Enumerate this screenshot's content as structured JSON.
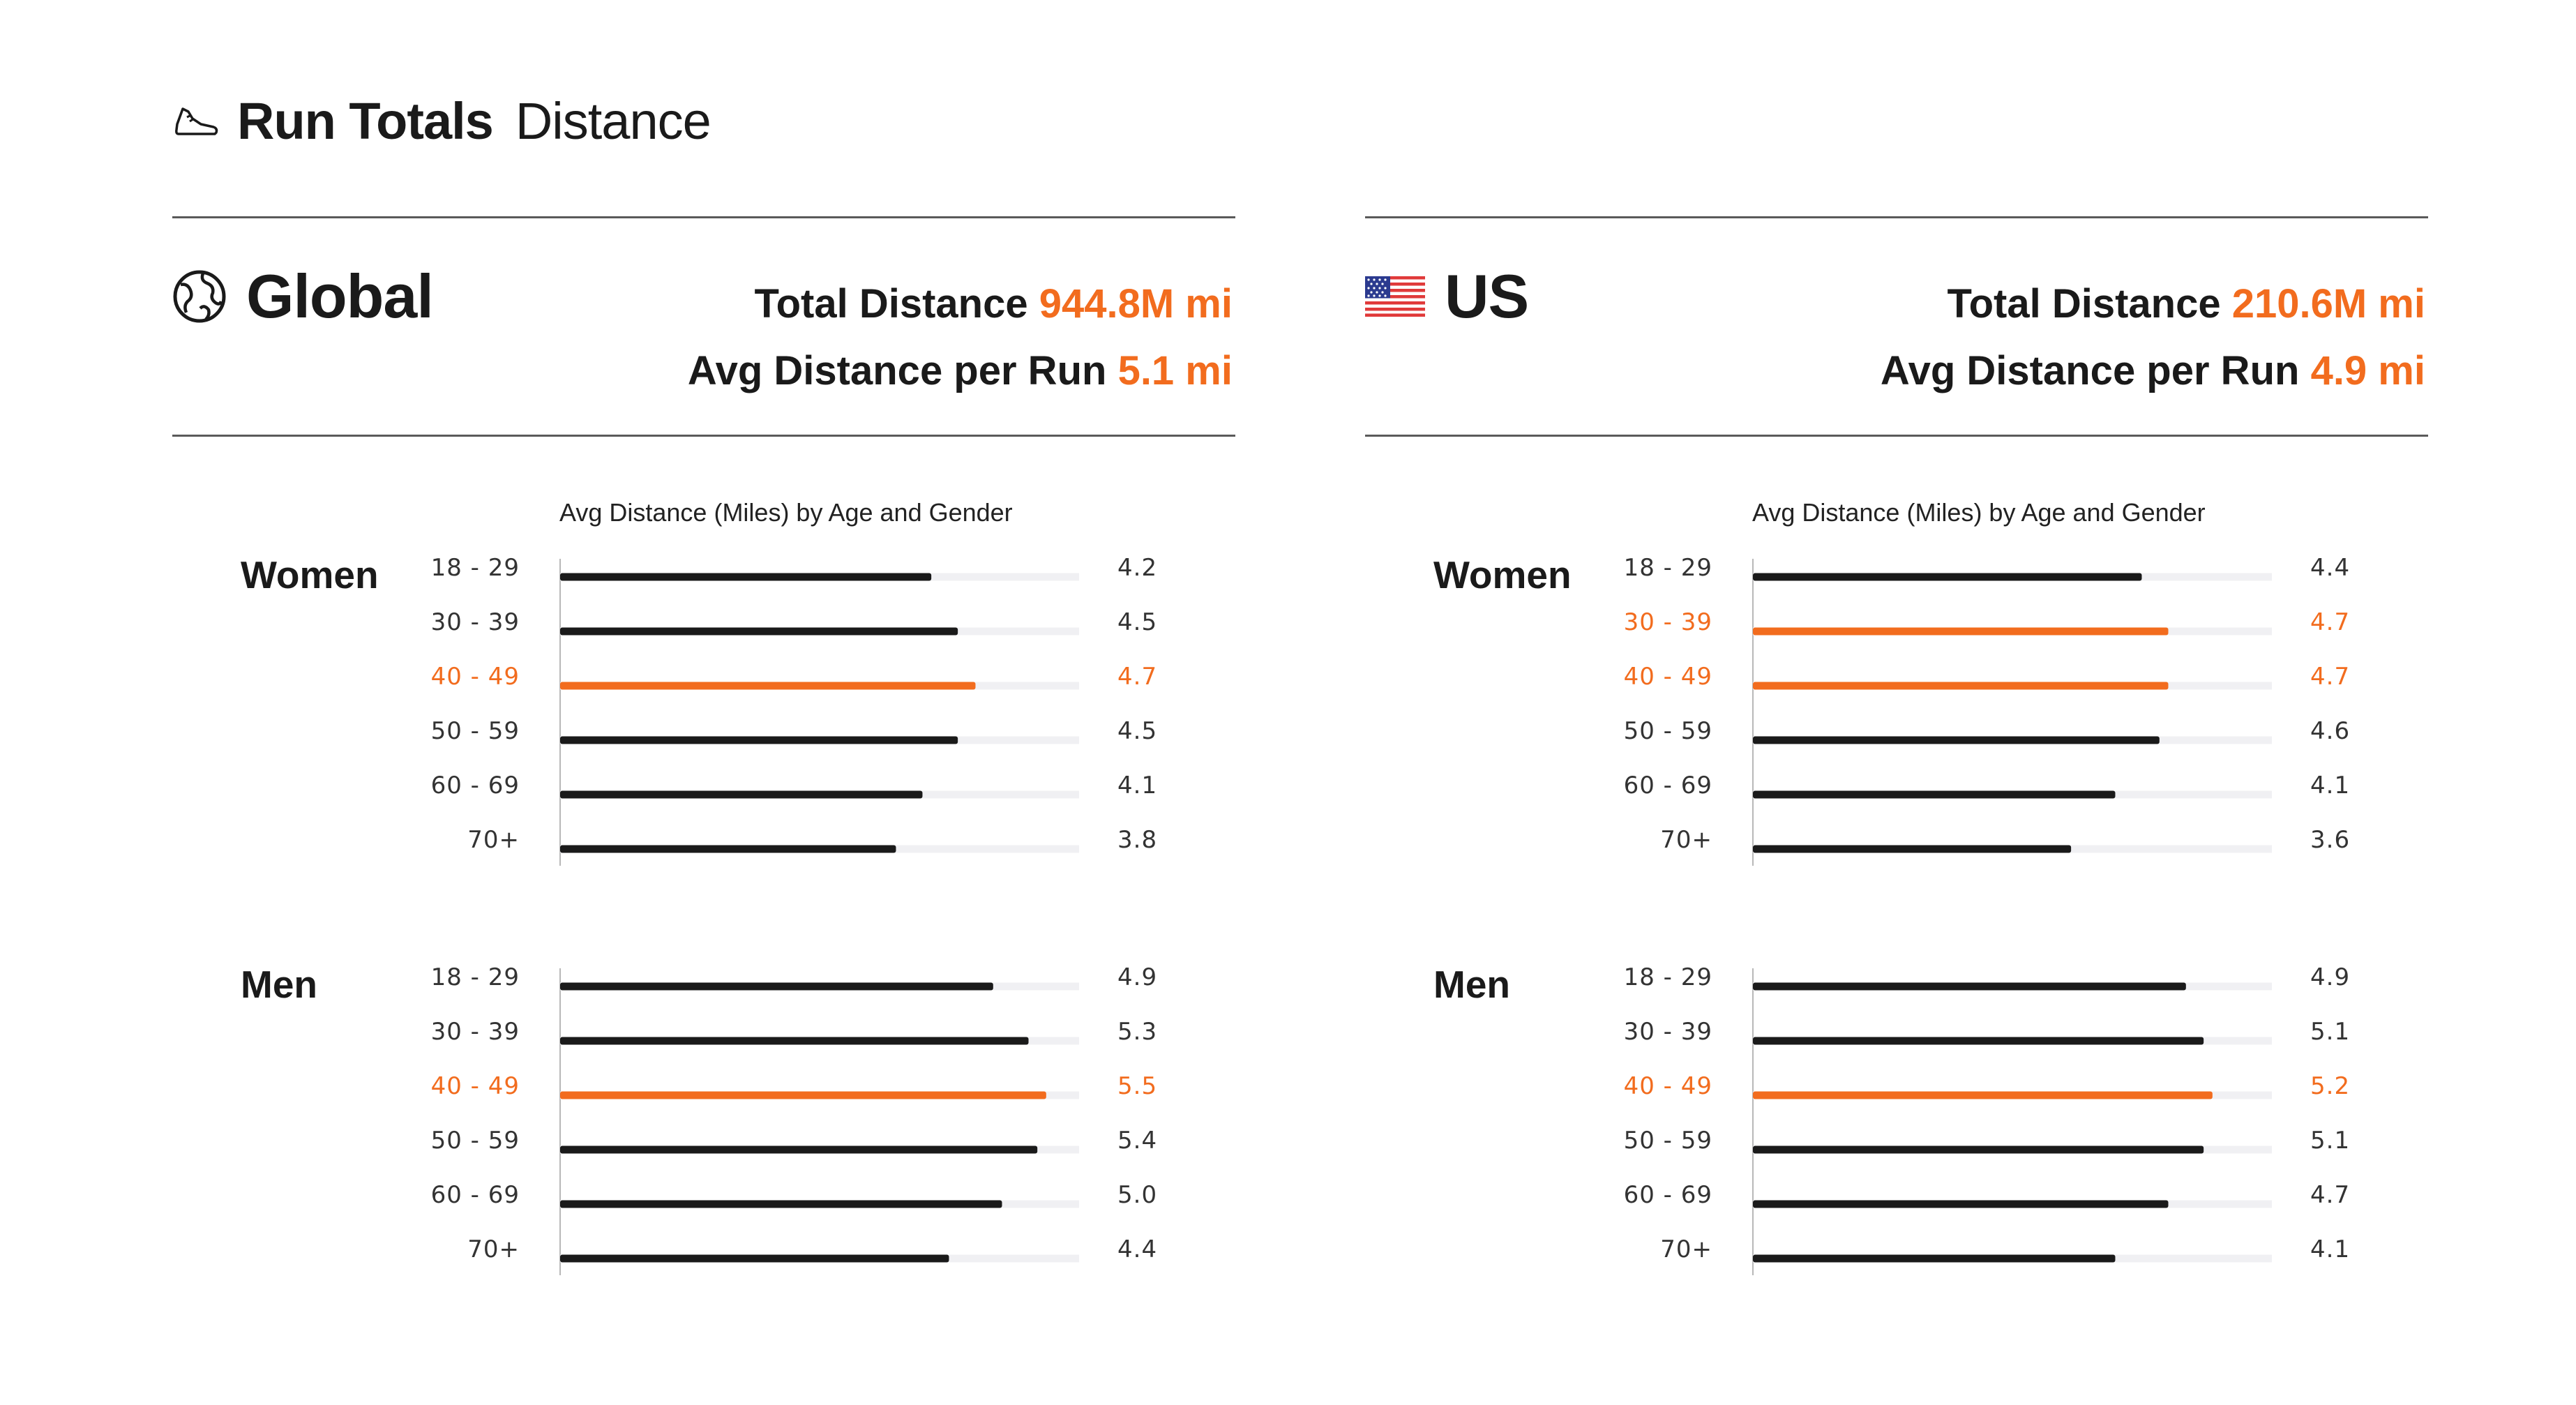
{
  "header": {
    "title_bold": "Run Totals",
    "title_light": "Distance",
    "icon": "shoe-icon"
  },
  "colors": {
    "accent": "#f26c1e",
    "bar": "#1a1a1a",
    "track": "#f0f0f3",
    "axis": "#b8b8b8"
  },
  "panels": {
    "global": {
      "name": "Global",
      "icon": "globe-icon",
      "total_label": "Total Distance",
      "total_value": "944.8M mi",
      "avg_label": "Avg Distance per Run",
      "avg_value": "5.1 mi",
      "chart_title": "Avg Distance (Miles) by Age and Gender"
    },
    "us": {
      "name": "US",
      "icon": "us-flag-icon",
      "total_label": "Total Distance",
      "total_value": "210.6M mi",
      "avg_label": "Avg Distance per Run",
      "avg_value": "4.9 mi",
      "chart_title": "Avg Distance (Miles) by Age and Gender"
    }
  },
  "chart_data": [
    {
      "type": "bar",
      "orientation": "horizontal",
      "title": "Avg Distance (Miles) by Age and Gender",
      "region": "Global",
      "xlim": [
        0,
        6
      ],
      "categories": [
        "18 - 29",
        "30 - 39",
        "40 - 49",
        "50 - 59",
        "60 - 69",
        "70+"
      ],
      "groups": [
        {
          "name": "Women",
          "values": [
            4.2,
            4.5,
            4.7,
            4.5,
            4.1,
            3.8
          ],
          "labels": [
            "4.2",
            "4.5",
            "4.7",
            "4.5",
            "4.1",
            "3.8"
          ],
          "highlight": [
            "40 - 49"
          ]
        },
        {
          "name": "Men",
          "values": [
            4.9,
            5.3,
            5.5,
            5.4,
            5.0,
            4.4
          ],
          "labels": [
            "4.9",
            "5.3",
            "5.5",
            "5.4",
            "5.0",
            "4.4"
          ],
          "highlight": [
            "40 - 49"
          ]
        }
      ]
    },
    {
      "type": "bar",
      "orientation": "horizontal",
      "title": "Avg Distance (Miles) by Age and Gender",
      "region": "US",
      "xlim": [
        0,
        6
      ],
      "categories": [
        "18 - 29",
        "30 - 39",
        "40 - 49",
        "50 - 59",
        "60 - 69",
        "70+"
      ],
      "groups": [
        {
          "name": "Women",
          "values": [
            4.4,
            4.7,
            4.7,
            4.6,
            4.1,
            3.6
          ],
          "labels": [
            "4.4",
            "4.7",
            "4.7",
            "4.6",
            "4.1",
            "3.6"
          ],
          "highlight": [
            "30 - 39",
            "40 - 49"
          ]
        },
        {
          "name": "Men",
          "values": [
            4.9,
            5.1,
            5.2,
            5.1,
            4.7,
            4.1
          ],
          "labels": [
            "4.9",
            "5.1",
            "5.2",
            "5.1",
            "4.7",
            "4.1"
          ],
          "highlight": [
            "40 - 49"
          ]
        }
      ]
    }
  ]
}
